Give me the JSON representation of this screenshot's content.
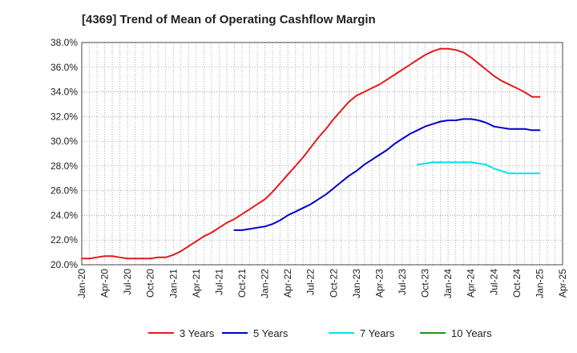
{
  "chart_data": {
    "type": "line",
    "title": "[4369]  Trend of Mean of Operating Cashflow Margin",
    "xlabel": "",
    "ylabel": "",
    "ylim": [
      20.0,
      38.0
    ],
    "yticks": [
      "20.0%",
      "22.0%",
      "24.0%",
      "26.0%",
      "28.0%",
      "30.0%",
      "32.0%",
      "34.0%",
      "36.0%",
      "38.0%"
    ],
    "xticks": [
      "Jan-20",
      "Apr-20",
      "Jul-20",
      "Oct-20",
      "Jan-21",
      "Apr-21",
      "Jul-21",
      "Oct-21",
      "Jan-22",
      "Apr-22",
      "Jul-22",
      "Oct-22",
      "Jan-23",
      "Apr-23",
      "Jul-23",
      "Oct-23",
      "Jan-24",
      "Apr-24",
      "Jul-24",
      "Oct-24",
      "Jan-25",
      "Apr-25"
    ],
    "grid": true,
    "legend_position": "bottom",
    "series": [
      {
        "name": "3 Years",
        "color": "#e31a1c",
        "x": [
          "2020-01",
          "2020-02",
          "2020-03",
          "2020-04",
          "2020-05",
          "2020-06",
          "2020-07",
          "2020-08",
          "2020-09",
          "2020-10",
          "2020-11",
          "2020-12",
          "2021-01",
          "2021-02",
          "2021-03",
          "2021-04",
          "2021-05",
          "2021-06",
          "2021-07",
          "2021-08",
          "2021-09",
          "2021-10",
          "2021-11",
          "2021-12",
          "2022-01",
          "2022-02",
          "2022-03",
          "2022-04",
          "2022-05",
          "2022-06",
          "2022-07",
          "2022-08",
          "2022-09",
          "2022-10",
          "2022-11",
          "2022-12",
          "2023-01",
          "2023-02",
          "2023-03",
          "2023-04",
          "2023-05",
          "2023-06",
          "2023-07",
          "2023-08",
          "2023-09",
          "2023-10",
          "2023-11",
          "2023-12",
          "2024-01",
          "2024-02",
          "2024-03",
          "2024-04",
          "2024-05",
          "2024-06",
          "2024-07",
          "2024-08",
          "2024-09",
          "2024-10",
          "2024-11",
          "2024-12",
          "2025-01"
        ],
        "values": [
          20.5,
          20.5,
          20.6,
          20.7,
          20.7,
          20.6,
          20.5,
          20.5,
          20.5,
          20.5,
          20.6,
          20.6,
          20.8,
          21.1,
          21.5,
          21.9,
          22.3,
          22.6,
          23.0,
          23.4,
          23.7,
          24.1,
          24.5,
          24.9,
          25.3,
          25.9,
          26.6,
          27.3,
          28.0,
          28.7,
          29.5,
          30.3,
          31.0,
          31.8,
          32.5,
          33.2,
          33.7,
          34.0,
          34.3,
          34.6,
          35.0,
          35.4,
          35.8,
          36.2,
          36.6,
          37.0,
          37.3,
          37.5,
          37.5,
          37.4,
          37.2,
          36.8,
          36.3,
          35.8,
          35.3,
          34.9,
          34.6,
          34.3,
          34.0,
          33.6,
          33.6
        ]
      },
      {
        "name": "5 Years",
        "color": "#0000cc",
        "x": [
          "2021-09",
          "2021-10",
          "2021-11",
          "2021-12",
          "2022-01",
          "2022-02",
          "2022-03",
          "2022-04",
          "2022-05",
          "2022-06",
          "2022-07",
          "2022-08",
          "2022-09",
          "2022-10",
          "2022-11",
          "2022-12",
          "2023-01",
          "2023-02",
          "2023-03",
          "2023-04",
          "2023-05",
          "2023-06",
          "2023-07",
          "2023-08",
          "2023-09",
          "2023-10",
          "2023-11",
          "2023-12",
          "2024-01",
          "2024-02",
          "2024-03",
          "2024-04",
          "2024-05",
          "2024-06",
          "2024-07",
          "2024-08",
          "2024-09",
          "2024-10",
          "2024-11",
          "2024-12",
          "2025-01"
        ],
        "values": [
          22.8,
          22.8,
          22.9,
          23.0,
          23.1,
          23.3,
          23.6,
          24.0,
          24.3,
          24.6,
          24.9,
          25.3,
          25.7,
          26.2,
          26.7,
          27.2,
          27.6,
          28.1,
          28.5,
          28.9,
          29.3,
          29.8,
          30.2,
          30.6,
          30.9,
          31.2,
          31.4,
          31.6,
          31.7,
          31.7,
          31.8,
          31.8,
          31.7,
          31.5,
          31.2,
          31.1,
          31.0,
          31.0,
          31.0,
          30.9,
          30.9
        ]
      },
      {
        "name": "7 Years",
        "color": "#00e5ee",
        "x": [
          "2023-09",
          "2023-10",
          "2023-11",
          "2023-12",
          "2024-01",
          "2024-02",
          "2024-03",
          "2024-04",
          "2024-05",
          "2024-06",
          "2024-07",
          "2024-08",
          "2024-09",
          "2024-10",
          "2024-11",
          "2024-12",
          "2025-01"
        ],
        "values": [
          28.1,
          28.2,
          28.3,
          28.3,
          28.3,
          28.3,
          28.3,
          28.3,
          28.2,
          28.1,
          27.8,
          27.6,
          27.4,
          27.4,
          27.4,
          27.4,
          27.4
        ]
      },
      {
        "name": "10 Years",
        "color": "#1a9a1a",
        "x": [],
        "values": []
      }
    ]
  }
}
